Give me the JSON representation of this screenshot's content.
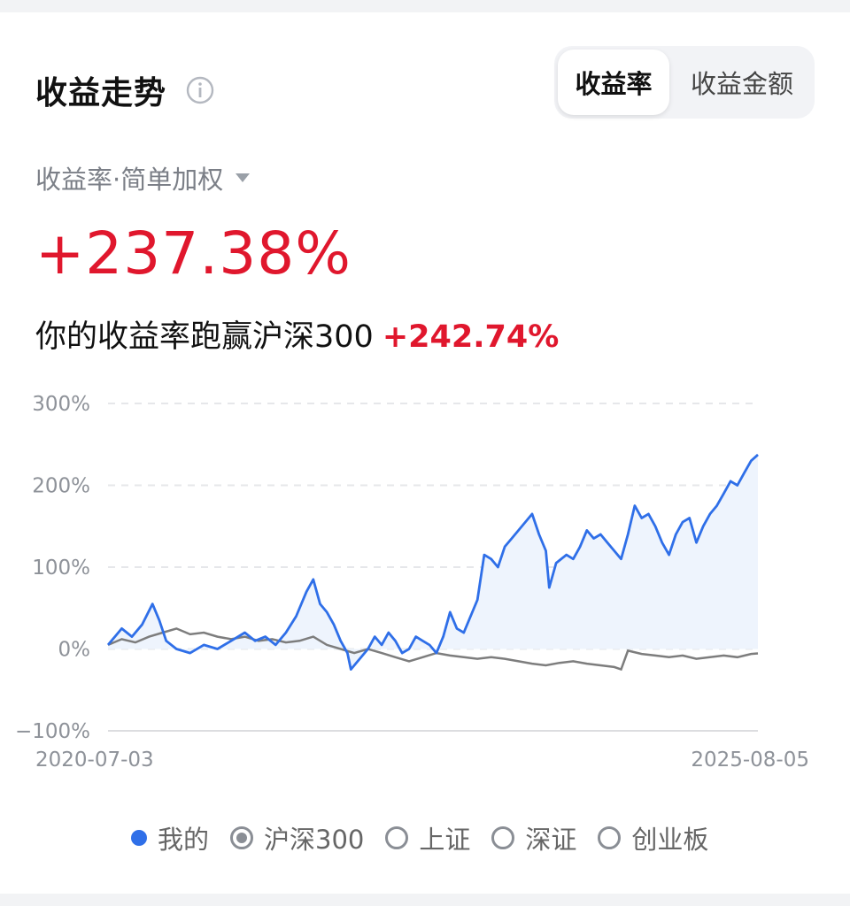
{
  "header": {
    "title": "收益走势",
    "info_icon": "info-icon",
    "segments": [
      {
        "label": "收益率",
        "active": true
      },
      {
        "label": "收益金额",
        "active": false
      }
    ]
  },
  "summary": {
    "metric_selector": "收益率·简单加权",
    "total_return": "+237.38%",
    "compare_text": "你的收益率跑赢沪深300",
    "compare_diff": "+242.74%"
  },
  "colors": {
    "accent_blue": "#2f6fe8",
    "benchmark_gray": "#7d7d7d",
    "positive_red": "#e0172d"
  },
  "legend": [
    {
      "label": "我的",
      "style": "dot"
    },
    {
      "label": "沪深300",
      "style": "radio-checked"
    },
    {
      "label": "上证",
      "style": "radio"
    },
    {
      "label": "深证",
      "style": "radio"
    },
    {
      "label": "创业板",
      "style": "radio"
    }
  ],
  "chart_data": {
    "type": "line",
    "ylim": [
      -100,
      300
    ],
    "y_ticks": [
      "300%",
      "200%",
      "100%",
      "0%",
      "−100%"
    ],
    "x_start": "2020-07-03",
    "x_end": "2025-08-05",
    "grid": true,
    "series": [
      {
        "name": "我的",
        "area_fill": true,
        "points": [
          [
            0,
            5
          ],
          [
            0.02,
            25
          ],
          [
            0.035,
            15
          ],
          [
            0.05,
            30
          ],
          [
            0.065,
            55
          ],
          [
            0.075,
            35
          ],
          [
            0.085,
            10
          ],
          [
            0.1,
            0
          ],
          [
            0.12,
            -5
          ],
          [
            0.14,
            5
          ],
          [
            0.16,
            0
          ],
          [
            0.18,
            10
          ],
          [
            0.2,
            20
          ],
          [
            0.215,
            10
          ],
          [
            0.23,
            15
          ],
          [
            0.245,
            5
          ],
          [
            0.26,
            20
          ],
          [
            0.275,
            40
          ],
          [
            0.29,
            70
          ],
          [
            0.3,
            85
          ],
          [
            0.31,
            55
          ],
          [
            0.32,
            45
          ],
          [
            0.33,
            30
          ],
          [
            0.34,
            10
          ],
          [
            0.35,
            -5
          ],
          [
            0.355,
            -25
          ],
          [
            0.365,
            -15
          ],
          [
            0.38,
            0
          ],
          [
            0.39,
            15
          ],
          [
            0.4,
            5
          ],
          [
            0.41,
            20
          ],
          [
            0.42,
            10
          ],
          [
            0.43,
            -5
          ],
          [
            0.44,
            0
          ],
          [
            0.45,
            15
          ],
          [
            0.46,
            10
          ],
          [
            0.47,
            5
          ],
          [
            0.48,
            -5
          ],
          [
            0.49,
            15
          ],
          [
            0.5,
            45
          ],
          [
            0.51,
            25
          ],
          [
            0.52,
            20
          ],
          [
            0.53,
            40
          ],
          [
            0.54,
            60
          ],
          [
            0.55,
            115
          ],
          [
            0.56,
            110
          ],
          [
            0.57,
            100
          ],
          [
            0.58,
            125
          ],
          [
            0.59,
            135
          ],
          [
            0.6,
            145
          ],
          [
            0.61,
            155
          ],
          [
            0.62,
            165
          ],
          [
            0.63,
            140
          ],
          [
            0.64,
            120
          ],
          [
            0.645,
            75
          ],
          [
            0.655,
            105
          ],
          [
            0.67,
            115
          ],
          [
            0.68,
            110
          ],
          [
            0.69,
            125
          ],
          [
            0.7,
            145
          ],
          [
            0.71,
            135
          ],
          [
            0.72,
            140
          ],
          [
            0.73,
            130
          ],
          [
            0.74,
            120
          ],
          [
            0.75,
            110
          ],
          [
            0.76,
            140
          ],
          [
            0.77,
            175
          ],
          [
            0.78,
            160
          ],
          [
            0.79,
            165
          ],
          [
            0.8,
            150
          ],
          [
            0.81,
            130
          ],
          [
            0.82,
            115
          ],
          [
            0.83,
            140
          ],
          [
            0.84,
            155
          ],
          [
            0.85,
            160
          ],
          [
            0.86,
            130
          ],
          [
            0.87,
            150
          ],
          [
            0.88,
            165
          ],
          [
            0.89,
            175
          ],
          [
            0.9,
            190
          ],
          [
            0.91,
            205
          ],
          [
            0.92,
            200
          ],
          [
            0.93,
            215
          ],
          [
            0.94,
            230
          ],
          [
            0.95,
            237.38
          ]
        ]
      },
      {
        "name": "沪深300",
        "area_fill": false,
        "points": [
          [
            0,
            5
          ],
          [
            0.02,
            12
          ],
          [
            0.04,
            8
          ],
          [
            0.06,
            15
          ],
          [
            0.08,
            20
          ],
          [
            0.1,
            25
          ],
          [
            0.12,
            18
          ],
          [
            0.14,
            20
          ],
          [
            0.16,
            15
          ],
          [
            0.18,
            12
          ],
          [
            0.2,
            15
          ],
          [
            0.22,
            10
          ],
          [
            0.24,
            12
          ],
          [
            0.26,
            8
          ],
          [
            0.28,
            10
          ],
          [
            0.3,
            15
          ],
          [
            0.32,
            5
          ],
          [
            0.34,
            0
          ],
          [
            0.36,
            -5
          ],
          [
            0.38,
            0
          ],
          [
            0.4,
            -5
          ],
          [
            0.42,
            -10
          ],
          [
            0.44,
            -15
          ],
          [
            0.46,
            -10
          ],
          [
            0.48,
            -5
          ],
          [
            0.5,
            -8
          ],
          [
            0.52,
            -10
          ],
          [
            0.54,
            -12
          ],
          [
            0.56,
            -10
          ],
          [
            0.58,
            -12
          ],
          [
            0.6,
            -15
          ],
          [
            0.62,
            -18
          ],
          [
            0.64,
            -20
          ],
          [
            0.66,
            -17
          ],
          [
            0.68,
            -15
          ],
          [
            0.7,
            -18
          ],
          [
            0.72,
            -20
          ],
          [
            0.74,
            -22
          ],
          [
            0.75,
            -25
          ],
          [
            0.76,
            -2
          ],
          [
            0.78,
            -6
          ],
          [
            0.8,
            -8
          ],
          [
            0.82,
            -10
          ],
          [
            0.84,
            -8
          ],
          [
            0.86,
            -12
          ],
          [
            0.88,
            -10
          ],
          [
            0.9,
            -8
          ],
          [
            0.92,
            -10
          ],
          [
            0.94,
            -6
          ],
          [
            0.95,
            -5.36
          ]
        ]
      }
    ]
  }
}
